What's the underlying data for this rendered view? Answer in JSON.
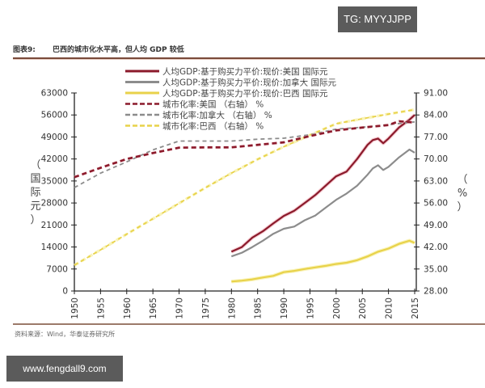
{
  "overlay": {
    "top_badge": "TG: MYYJJPP",
    "bottom_badge": "www.fengdall9.com"
  },
  "figure": {
    "number": "图表9:",
    "title": "巴西的城市化水平高，但人均 GDP 较低",
    "source": "资料来源：Wind，华泰证券研究所"
  },
  "colors": {
    "us": "#8b1a2b",
    "canada": "#8c8c8c",
    "brazil": "#e8d24a",
    "us_glow": "#f2b8c0",
    "brazil_glow": "#f7ee9a"
  },
  "chart_data": {
    "type": "line",
    "title": "巴西的城市化水平高，但人均 GDP 较低",
    "xlabel": "",
    "ylabel": "（国际元）",
    "y2label": "（%）",
    "x_ticks": [
      "1950",
      "1955",
      "1960",
      "1965",
      "1970",
      "1975",
      "1980",
      "1985",
      "1990",
      "1995",
      "2000",
      "2005",
      "2010",
      "2015"
    ],
    "ylim": [
      0,
      63000
    ],
    "y_ticks": [
      "63000",
      "56000",
      "49000",
      "42000",
      "35000",
      "28000",
      "21000",
      "14000",
      "7000",
      "0"
    ],
    "y2lim": [
      28.0,
      91.0
    ],
    "y2_ticks": [
      "91.00",
      "84.00",
      "77.00",
      "70.00",
      "63.00",
      "56.00",
      "49.00",
      "42.00",
      "35.00",
      "28.00"
    ],
    "legend_position": "top-center",
    "series": [
      {
        "name": "人均GDP:基于购买力平价:现价:美国 国际元",
        "axis": "left",
        "style": "solid",
        "color": "#8b1a2b",
        "x": [
          1980,
          1982,
          1984,
          1986,
          1988,
          1990,
          1992,
          1994,
          1996,
          1998,
          2000,
          2002,
          2004,
          2006,
          2007,
          2008,
          2009,
          2010,
          2012,
          2014,
          2015
        ],
        "values": [
          12500,
          14000,
          17000,
          19000,
          21500,
          23900,
          25500,
          28000,
          30500,
          33500,
          36500,
          38000,
          42000,
          46500,
          48000,
          48500,
          47000,
          48500,
          52000,
          54500,
          56000
        ]
      },
      {
        "name": "人均GDP:基于购买力平价:现价:加拿大 国际元",
        "axis": "left",
        "style": "solid",
        "color": "#8c8c8c",
        "x": [
          1980,
          1982,
          1984,
          1986,
          1988,
          1990,
          1992,
          1994,
          1996,
          1998,
          2000,
          2002,
          2004,
          2006,
          2007,
          2008,
          2009,
          2010,
          2012,
          2014,
          2015
        ],
        "values": [
          11000,
          12200,
          14000,
          16000,
          18200,
          19800,
          20500,
          22500,
          24000,
          26500,
          29000,
          31000,
          33500,
          37000,
          39000,
          40000,
          38500,
          39500,
          42500,
          45000,
          44000
        ]
      },
      {
        "name": "人均GDP:基于购买力平价:现价:巴西 国际元",
        "axis": "left",
        "style": "solid",
        "color": "#e8d24a",
        "x": [
          1980,
          1982,
          1984,
          1986,
          1988,
          1990,
          1992,
          1994,
          1996,
          1998,
          2000,
          2002,
          2004,
          2006,
          2008,
          2010,
          2012,
          2014,
          2015
        ],
        "values": [
          3000,
          3300,
          3700,
          4300,
          4800,
          6000,
          6400,
          7000,
          7500,
          8000,
          8600,
          9000,
          9800,
          11000,
          12500,
          13500,
          15000,
          16000,
          15300
        ]
      },
      {
        "name": "城市化率:美国 （右轴） %",
        "axis": "right",
        "style": "dashed",
        "color": "#8b1a2b",
        "x": [
          1950,
          1955,
          1960,
          1965,
          1970,
          1975,
          1980,
          1985,
          1990,
          1995,
          2000,
          2005,
          2010,
          2012,
          2015
        ],
        "values": [
          64.2,
          67.2,
          70.0,
          71.9,
          73.6,
          73.7,
          73.7,
          74.5,
          75.3,
          77.3,
          79.1,
          80.0,
          80.8,
          82.0,
          81.6
        ]
      },
      {
        "name": "城市化率:加拿大 （右轴） %",
        "axis": "right",
        "style": "dashed",
        "color": "#8c8c8c",
        "x": [
          1950,
          1955,
          1960,
          1965,
          1970,
          1975,
          1980,
          1985,
          1990,
          1995,
          2000,
          2005,
          2010,
          2015
        ],
        "values": [
          60.9,
          65.5,
          69.1,
          72.9,
          75.7,
          75.7,
          75.7,
          76.3,
          76.6,
          77.7,
          79.5,
          80.1,
          80.9,
          81.8
        ]
      },
      {
        "name": "城市化率:巴西 （右轴） %",
        "axis": "right",
        "style": "dashed",
        "color": "#e8d24a",
        "x": [
          1950,
          1955,
          1960,
          1965,
          1970,
          1975,
          1980,
          1985,
          1990,
          1995,
          2000,
          2005,
          2010,
          2015
        ],
        "values": [
          36.2,
          41.1,
          46.1,
          51.0,
          55.9,
          60.8,
          65.5,
          69.9,
          73.9,
          77.6,
          81.2,
          82.8,
          84.3,
          85.7
        ]
      }
    ]
  }
}
